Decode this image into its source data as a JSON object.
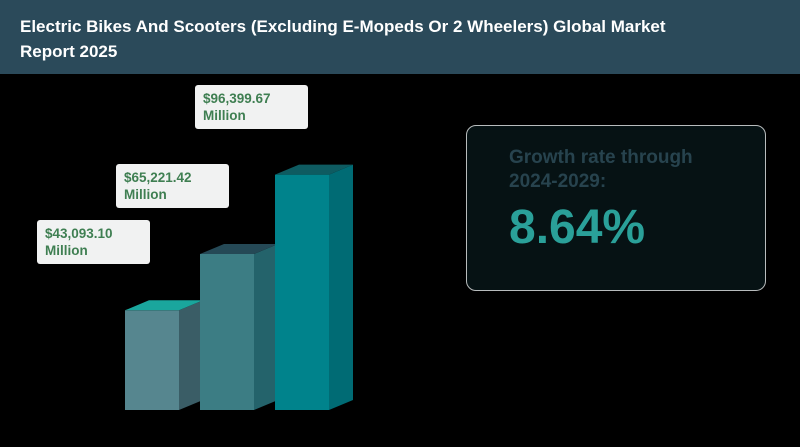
{
  "header": {
    "title": "Electric Bikes And Scooters (Excluding E-Mopeds Or 2 Wheelers) Global Market Report 2025"
  },
  "growth": {
    "label": "Growth rate through\n2024-2029:",
    "value": "8.64%"
  },
  "chart_data": {
    "type": "bar",
    "categories": [
      "",
      "",
      ""
    ],
    "values": [
      43093.1,
      65221.42,
      96399.67
    ],
    "data_labels": [
      "$43,093.10\nMillion",
      "$65,221.42\nMillion",
      "$96,399.67\nMillion"
    ],
    "title": "",
    "xlabel": "",
    "ylabel": "",
    "ylim": [
      0,
      110000
    ],
    "grid": false,
    "legend": "none"
  },
  "colors": {
    "header_bg": "#2b4a5a",
    "bar_front": [
      "#56868f",
      "#3c7d84",
      "#00838c"
    ],
    "bar_top": [
      "#1aa69d",
      "#254956",
      "#0e5b61"
    ],
    "bar_side": [
      "#3a5d66",
      "#24636b",
      "#006b74"
    ],
    "label_text": "#3f7f52",
    "growth_value": "#2aa099"
  }
}
